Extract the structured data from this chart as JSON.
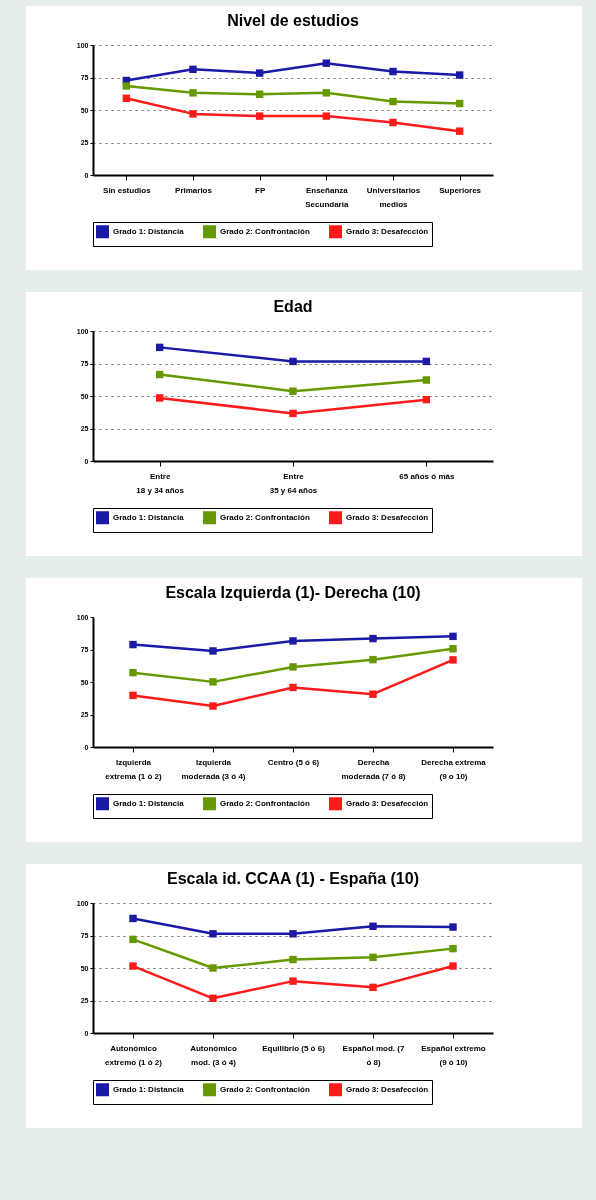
{
  "chart_data": [
    {
      "type": "line",
      "title": "Nivel de estudios",
      "categories": [
        "Sin estudios",
        "Primarios",
        "FP",
        "Enseñanza\nSecundaria",
        "Universitarios\nmedios",
        "Superiores"
      ],
      "series": [
        {
          "name": "Grado 1: Distancia",
          "color": "#1a1aa6",
          "values": [
            72.7,
            81.3,
            78.4,
            86,
            79.6,
            76.9
          ]
        },
        {
          "name": "Grado 2: Confrontación",
          "color": "#669900",
          "values": [
            68.5,
            63.2,
            62.1,
            63.2,
            56.5,
            55
          ]
        },
        {
          "name": "Grado 3: Desafección",
          "color": "#ff1a1a",
          "values": [
            59,
            47,
            45.3,
            45.3,
            40.4,
            33.7
          ]
        }
      ],
      "ylim": [
        0,
        100
      ],
      "yticks": [
        0,
        25,
        50,
        75,
        100
      ],
      "grid": "y",
      "legend": "bottom",
      "marker": "square"
    },
    {
      "type": "line",
      "title": "Edad",
      "categories": [
        "Entre\n18 y 34 años",
        "Entre\n35 y 64 años",
        "65 años ó más"
      ],
      "series": [
        {
          "name": "Grado 1: Distancia",
          "color": "#1a1aa6",
          "values": [
            87.4,
            76.6,
            76.6
          ]
        },
        {
          "name": "Grado 2: Confrontación",
          "color": "#669900",
          "values": [
            66.5,
            53.7,
            62.3
          ]
        },
        {
          "name": "Grado 3: Desafección",
          "color": "#ff1a1a",
          "values": [
            48.5,
            36.6,
            47.2
          ]
        }
      ],
      "ylim": [
        0,
        100
      ],
      "yticks": [
        0,
        25,
        50,
        75,
        100
      ],
      "grid": "y",
      "legend": "bottom",
      "marker": "square"
    },
    {
      "type": "line",
      "title": "Escala Izquierda (1)- Derecha (10)",
      "categories": [
        "Izquierda\nextrema (1 ó 2)",
        "Izquierda\nmoderada (3 ó 4)",
        "Centro (5 ó 6)",
        "Derecha\nmoderada (7 ó 8)",
        "Derecha extrema\n(9 o 10)"
      ],
      "series": [
        {
          "name": "Grado 1: Distancia",
          "color": "#1a1aa6",
          "values": [
            78.8,
            73.9,
            81.6,
            83.4,
            85.1
          ]
        },
        {
          "name": "Grado 2: Confrontación",
          "color": "#669900",
          "values": [
            57.2,
            50.1,
            61.6,
            67.2,
            75.6
          ]
        },
        {
          "name": "Grado 3: Desafección",
          "color": "#ff1a1a",
          "values": [
            39.7,
            31.5,
            45.8,
            40.6,
            67
          ]
        }
      ],
      "ylim": [
        0,
        100
      ],
      "yticks": [
        0,
        25,
        50,
        75,
        100
      ],
      "legend": "bottom",
      "marker": "square"
    },
    {
      "type": "line",
      "title": "Escala id. CCAA (1) - España (10)",
      "categories": [
        "Autonómico\nextremo (1 ó 2)",
        "Autonómico\nmod. (3 ó 4)",
        "Equilibrio (5 ó 6)",
        "Español mod. (7\nó 8)",
        "Español extremo\n(9 ó 10)"
      ],
      "series": [
        {
          "name": "Grado 1: Distancia",
          "color": "#1a1aa6",
          "values": [
            88.1,
            76.3,
            76.3,
            82.1,
            81.5
          ]
        },
        {
          "name": "Grado 2: Confrontación",
          "color": "#669900",
          "values": [
            72,
            50,
            56.5,
            58.2,
            64.9
          ]
        },
        {
          "name": "Grado 3: Desafección",
          "color": "#ff1a1a",
          "values": [
            51.5,
            26.7,
            39.9,
            35.1,
            51.5
          ]
        }
      ],
      "ylim": [
        0,
        100
      ],
      "yticks": [
        0,
        25,
        50,
        75,
        100
      ],
      "grid": "y",
      "legend": "bottom",
      "marker": "square"
    }
  ]
}
